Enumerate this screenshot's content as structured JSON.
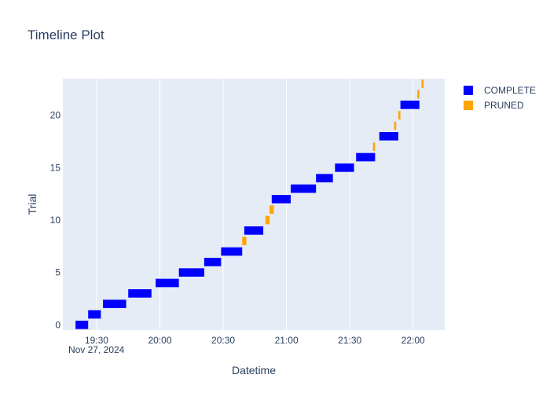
{
  "chart_data": {
    "type": "timeline",
    "title": "Timeline Plot",
    "xlabel": "Datetime",
    "ylabel": "Trial",
    "x_date_label": "Nov 27, 2024",
    "x_ticks": [
      "19:30",
      "20:00",
      "20:30",
      "21:00",
      "21:30",
      "22:00"
    ],
    "y_ticks": [
      0,
      5,
      10,
      15,
      20
    ],
    "xlim": [
      "19:14",
      "22:15"
    ],
    "ylim": [
      -0.5,
      23.5
    ],
    "grid": true,
    "legend_position": "top-right",
    "colors": {
      "COMPLETE": "#0000ff",
      "PRUNED": "#ffa500",
      "plot_bg": "#e5ecf6",
      "grid": "#ffffff"
    },
    "series": [
      {
        "name": "COMPLETE",
        "trials": [
          {
            "trial": 0,
            "start": "19:20",
            "end": "19:26"
          },
          {
            "trial": 1,
            "start": "19:26",
            "end": "19:32"
          },
          {
            "trial": 2,
            "start": "19:33",
            "end": "19:44"
          },
          {
            "trial": 3,
            "start": "19:45",
            "end": "19:56"
          },
          {
            "trial": 4,
            "start": "19:58",
            "end": "20:09"
          },
          {
            "trial": 5,
            "start": "20:09",
            "end": "20:21"
          },
          {
            "trial": 6,
            "start": "20:21",
            "end": "20:29"
          },
          {
            "trial": 7,
            "start": "20:29",
            "end": "20:39"
          },
          {
            "trial": 9,
            "start": "20:40",
            "end": "20:49"
          },
          {
            "trial": 12,
            "start": "20:53",
            "end": "21:02"
          },
          {
            "trial": 13,
            "start": "21:02",
            "end": "21:14"
          },
          {
            "trial": 14,
            "start": "21:14",
            "end": "21:22"
          },
          {
            "trial": 15,
            "start": "21:23",
            "end": "21:32"
          },
          {
            "trial": 16,
            "start": "21:33",
            "end": "21:42"
          },
          {
            "trial": 18,
            "start": "21:44",
            "end": "21:53"
          },
          {
            "trial": 21,
            "start": "21:54",
            "end": "22:03"
          }
        ]
      },
      {
        "name": "PRUNED",
        "trials": [
          {
            "trial": 8,
            "start": "20:39",
            "end": "20:41"
          },
          {
            "trial": 10,
            "start": "20:50",
            "end": "20:52"
          },
          {
            "trial": 11,
            "start": "20:52",
            "end": "20:54"
          },
          {
            "trial": 17,
            "start": "21:41",
            "end": "21:42"
          },
          {
            "trial": 19,
            "start": "21:51",
            "end": "21:52"
          },
          {
            "trial": 20,
            "start": "21:53",
            "end": "21:54"
          },
          {
            "trial": 22,
            "start": "22:02",
            "end": "22:03"
          },
          {
            "trial": 23,
            "start": "22:04",
            "end": "22:05"
          }
        ]
      }
    ]
  }
}
